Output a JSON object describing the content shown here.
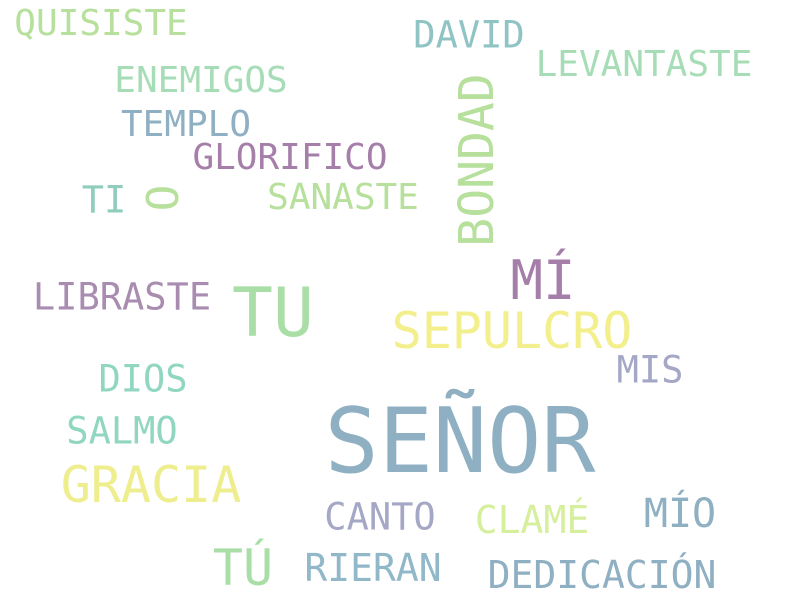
{
  "words": [
    {
      "text": "SEÑOR",
      "color": "#8fb0c2"
    },
    {
      "text": "TU",
      "color": "#a9dea7"
    },
    {
      "text": "SEPULCRO",
      "color": "#f2ef8c"
    },
    {
      "text": "MÍ",
      "color": "#a57fa9"
    },
    {
      "text": "BONDAD",
      "color": "#b6e09c"
    },
    {
      "text": "GRACIA",
      "color": "#eeee8f"
    },
    {
      "text": "TÚ",
      "color": "#a9dea7"
    },
    {
      "text": "QUISISTE",
      "color": "#b6e09c"
    },
    {
      "text": "DAVID",
      "color": "#90c3c3"
    },
    {
      "text": "LEVANTASTE",
      "color": "#a7ddb6"
    },
    {
      "text": "ENEMIGOS",
      "color": "#a7ddb6"
    },
    {
      "text": "TEMPLO",
      "color": "#8fb0c2"
    },
    {
      "text": "GLORIFICO",
      "color": "#a57fa9"
    },
    {
      "text": "TI",
      "color": "#90cdbd"
    },
    {
      "text": "O",
      "color": "#b6e09c"
    },
    {
      "text": "SANASTE",
      "color": "#b6e09c"
    },
    {
      "text": "LIBRASTE",
      "color": "#a98db0"
    },
    {
      "text": "MIS",
      "color": "#a5a7c6"
    },
    {
      "text": "DIOS",
      "color": "#90d6c0"
    },
    {
      "text": "SALMO",
      "color": "#90d6c0"
    },
    {
      "text": "CANTO",
      "color": "#a5a7c6"
    },
    {
      "text": "CLAMÉ",
      "color": "#d6ef9c"
    },
    {
      "text": "MÍO",
      "color": "#8fb0c2"
    },
    {
      "text": "RIERAN",
      "color": "#90b8c8"
    },
    {
      "text": "DEDICACIÓN",
      "color": "#8fb0c2"
    }
  ]
}
